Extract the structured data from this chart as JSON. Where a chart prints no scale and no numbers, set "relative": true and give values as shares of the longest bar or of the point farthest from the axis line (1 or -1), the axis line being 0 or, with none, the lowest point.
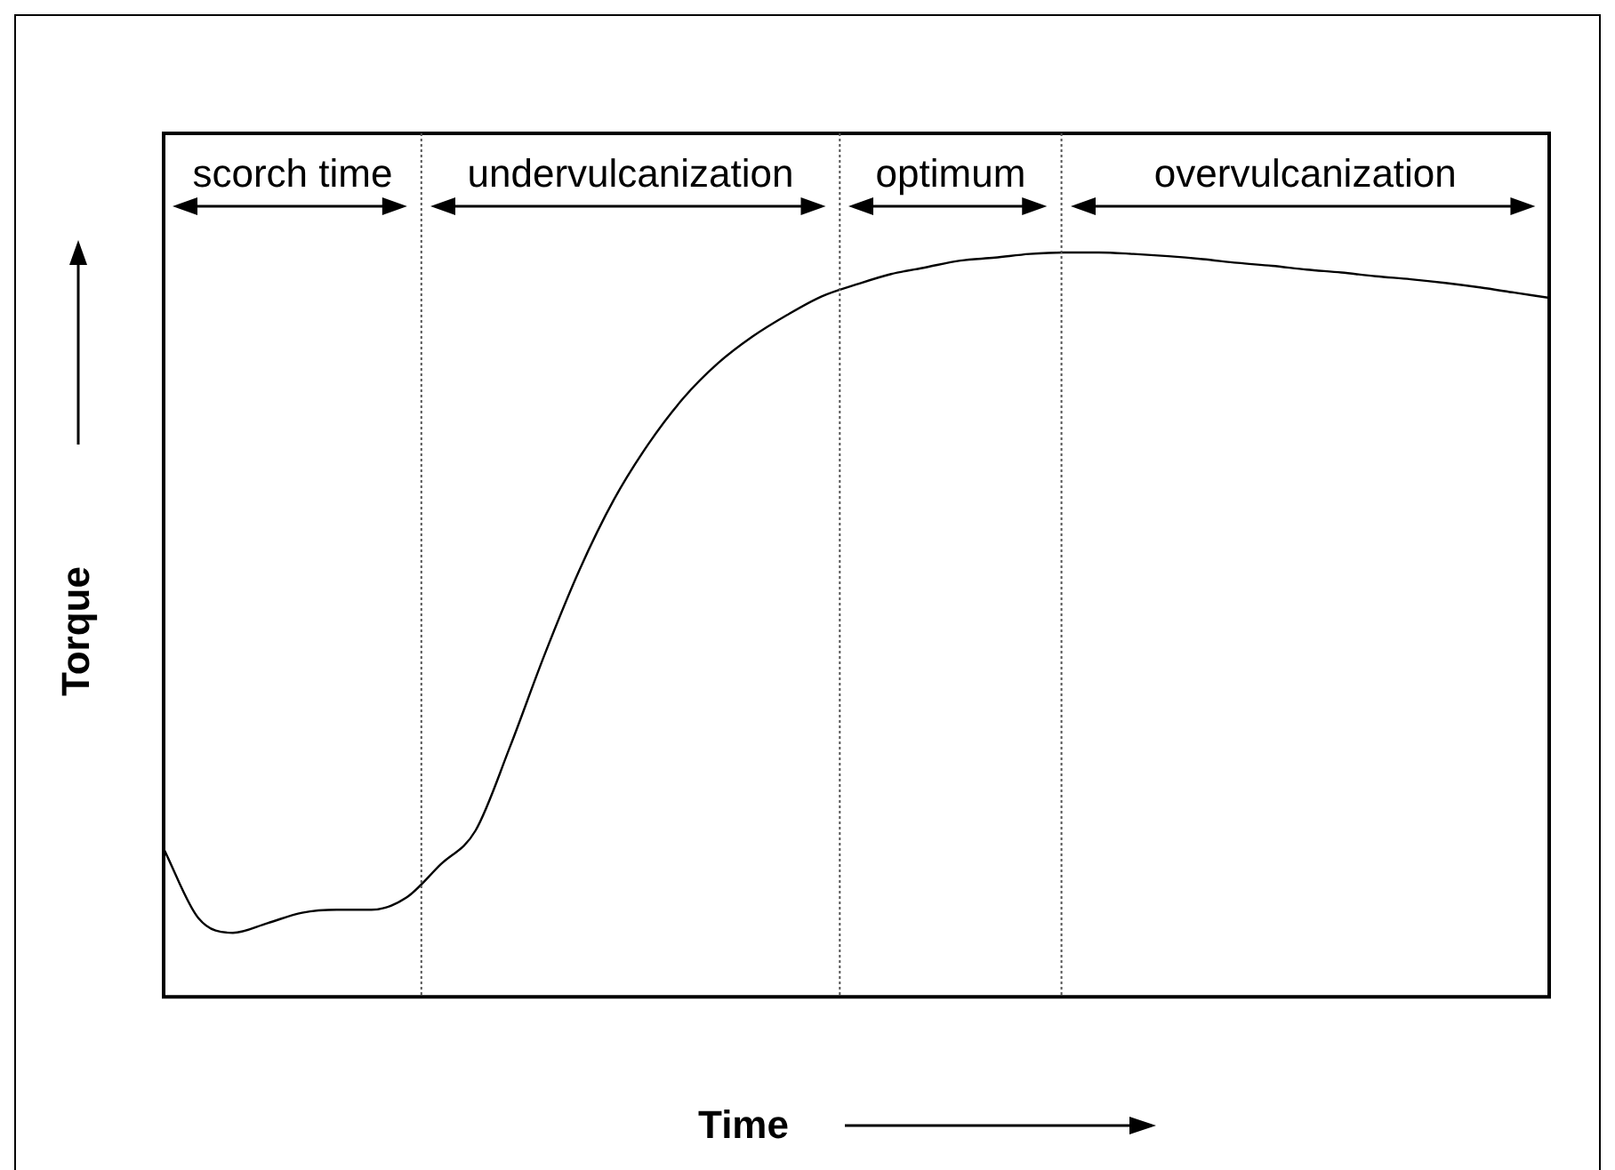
{
  "chart_data": {
    "type": "line",
    "relative": true,
    "xlabel": "Time",
    "ylabel": "Torque",
    "categories": [
      null,
      null,
      null,
      null,
      null,
      null,
      null,
      null,
      null,
      null,
      null,
      null,
      null,
      null,
      null,
      null,
      null,
      null,
      null,
      null,
      null,
      null,
      null,
      null,
      null,
      null,
      null,
      null,
      null,
      null,
      null,
      null,
      null,
      null,
      null,
      null,
      null,
      null,
      null,
      null,
      null
    ],
    "series": [
      {
        "color": "#000000",
        "values": [
          0.199,
          0.106,
          0.086,
          0.099,
          0.113,
          0.117,
          0.117,
          0.133,
          0.178,
          0.223,
          0.336,
          0.46,
          0.573,
          0.668,
          0.743,
          0.804,
          0.851,
          0.887,
          0.916,
          0.941,
          0.957,
          0.971,
          0.98,
          0.989,
          0.993,
          0.998,
          1.0,
          1.0,
          0.998,
          0.995,
          0.991,
          0.986,
          0.982,
          0.977,
          0.973,
          0.968,
          0.964,
          0.959,
          0.953,
          0.946,
          0.939
        ]
      }
    ],
    "annotations": [
      "scorch time",
      "undervulcanization",
      "optimum",
      "overvulcanization"
    ],
    "marker": "none",
    "line_style": "solid"
  }
}
